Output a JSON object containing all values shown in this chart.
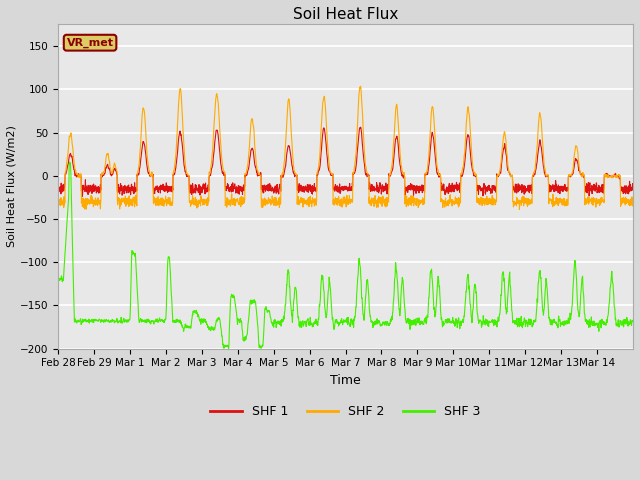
{
  "title": "Soil Heat Flux",
  "xlabel": "Time",
  "ylabel": "Soil Heat Flux (W/m2)",
  "ylim": [
    -200,
    175
  ],
  "yticks": [
    -200,
    -150,
    -100,
    -50,
    0,
    50,
    100,
    150
  ],
  "bg_color": "#d8d8d8",
  "plot_bg_color": "#e8e8e8",
  "grid_color": "white",
  "shf1_color": "#dd1111",
  "shf2_color": "#ffaa00",
  "shf3_color": "#44ee00",
  "legend_label1": "SHF 1",
  "legend_label2": "SHF 2",
  "legend_label3": "SHF 3",
  "annotation_text": "VR_met",
  "annotation_fg": "#8B0000",
  "annotation_bg": "#ddcc66",
  "n_days": 16,
  "tick_labels": [
    "Feb 28",
    "Feb 29",
    "Mar 1",
    "Mar 2",
    "Mar 3",
    "Mar 4",
    "Mar 5",
    "Mar 6",
    "Mar 7",
    "Mar 8",
    "Mar 9",
    "Mar 10",
    "Mar 11",
    "Mar 12",
    "Mar 13",
    "Mar 14"
  ]
}
